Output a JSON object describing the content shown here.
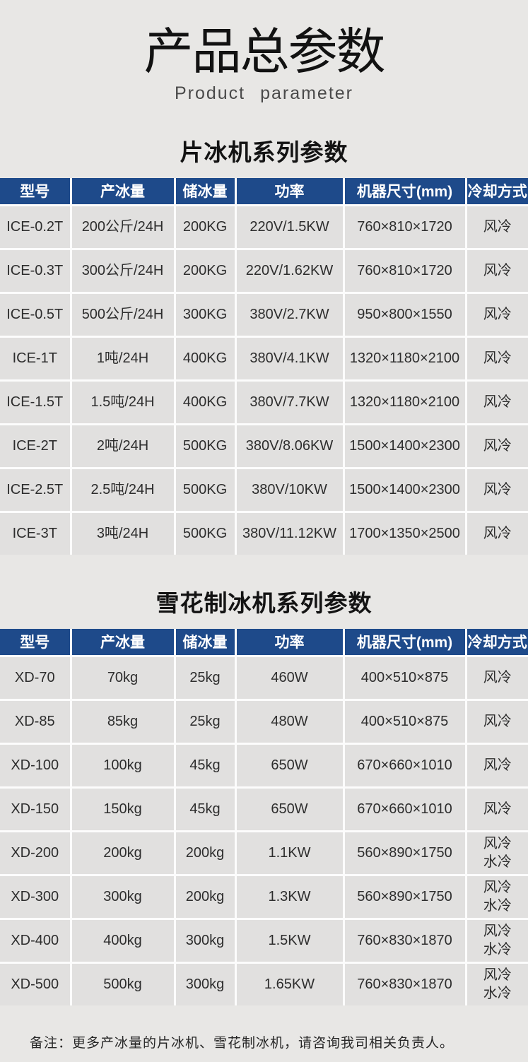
{
  "page": {
    "title": "产品总参数",
    "subtitle": "Product  parameter",
    "note": "备注：更多产冰量的片冰机、雪花制冰机，请咨询我司相关负责人。"
  },
  "colors": {
    "header_bg": "#1e4a8a",
    "cell_bg": "#e1e0df",
    "page_bg": "#e8e7e5",
    "separator": "#fcfcfc",
    "header_text": "#ffffff"
  },
  "tables": [
    {
      "heading": "片冰机系列参数",
      "columns": [
        "型号",
        "产冰量",
        "储冰量",
        "功率",
        "机器尺寸(mm)",
        "冷却方式"
      ],
      "rows": [
        [
          "ICE-0.2T",
          "200公斤/24H",
          "200KG",
          "220V/1.5KW",
          "760×810×1720",
          "风冷"
        ],
        [
          "ICE-0.3T",
          "300公斤/24H",
          "200KG",
          "220V/1.62KW",
          "760×810×1720",
          "风冷"
        ],
        [
          "ICE-0.5T",
          "500公斤/24H",
          "300KG",
          "380V/2.7KW",
          "950×800×1550",
          "风冷"
        ],
        [
          "ICE-1T",
          "1吨/24H",
          "400KG",
          "380V/4.1KW",
          "1320×1180×2100",
          "风冷"
        ],
        [
          "ICE-1.5T",
          "1.5吨/24H",
          "400KG",
          "380V/7.7KW",
          "1320×1180×2100",
          "风冷"
        ],
        [
          "ICE-2T",
          "2吨/24H",
          "500KG",
          "380V/8.06KW",
          "1500×1400×2300",
          "风冷"
        ],
        [
          "ICE-2.5T",
          "2.5吨/24H",
          "500KG",
          "380V/10KW",
          "1500×1400×2300",
          "风冷"
        ],
        [
          "ICE-3T",
          "3吨/24H",
          "500KG",
          "380V/11.12KW",
          "1700×1350×2500",
          "风冷"
        ]
      ]
    },
    {
      "heading": "雪花制冰机系列参数",
      "columns": [
        "型号",
        "产冰量",
        "储冰量",
        "功率",
        "机器尺寸(mm)",
        "冷却方式"
      ],
      "rows": [
        [
          "XD-70",
          "70kg",
          "25kg",
          "460W",
          "400×510×875",
          "风冷"
        ],
        [
          "XD-85",
          "85kg",
          "25kg",
          "480W",
          "400×510×875",
          "风冷"
        ],
        [
          "XD-100",
          "100kg",
          "45kg",
          "650W",
          "670×660×1010",
          "风冷"
        ],
        [
          "XD-150",
          "150kg",
          "45kg",
          "650W",
          "670×660×1010",
          "风冷"
        ],
        [
          "XD-200",
          "200kg",
          "200kg",
          "1.1KW",
          "560×890×1750",
          "风冷\n水冷"
        ],
        [
          "XD-300",
          "300kg",
          "200kg",
          "1.3KW",
          "560×890×1750",
          "风冷\n水冷"
        ],
        [
          "XD-400",
          "400kg",
          "300kg",
          "1.5KW",
          "760×830×1870",
          "风冷\n水冷"
        ],
        [
          "XD-500",
          "500kg",
          "300kg",
          "1.65KW",
          "760×830×1870",
          "风冷\n水冷"
        ]
      ]
    }
  ]
}
